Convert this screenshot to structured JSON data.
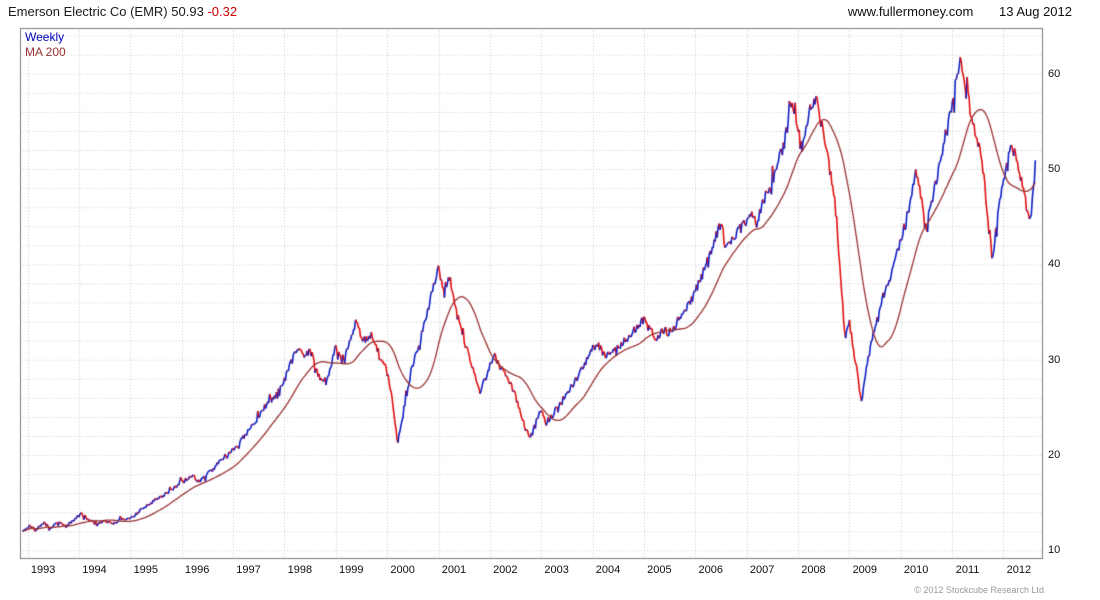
{
  "header": {
    "instrument": "Emerson Electric Co (EMR)",
    "last_price": "50.93",
    "change": "-0.32",
    "website": "www.fullermoney.com",
    "date": "13 Aug 2012"
  },
  "footer": {
    "copyright": "© 2012 Stockcube Research Ltd"
  },
  "chart_data": {
    "type": "line",
    "title": "Emerson Electric Co (EMR) 50.93 -0.32",
    "xlabel": "",
    "ylabel": "",
    "xlim": [
      1992.85,
      2012.75
    ],
    "ylim": [
      9.2,
      64.8
    ],
    "yticks": [
      60,
      50,
      40,
      30,
      20,
      10
    ],
    "ygrid_step": 2,
    "year_labels": [
      "1993",
      "1994",
      "1995",
      "1996",
      "1997",
      "1998",
      "1999",
      "2000",
      "2001",
      "2002",
      "2003",
      "2004",
      "2005",
      "2006",
      "2007",
      "2008",
      "2009",
      "2010",
      "2011",
      "2012"
    ],
    "legend": [
      {
        "label": "Weekly",
        "color": "#0000bb"
      },
      {
        "label": "MA 200",
        "color": "#993333"
      }
    ],
    "colors": {
      "up": "#0f1fc4",
      "down": "#e01010",
      "ma": "#993333",
      "grid": "#cccccc",
      "border": "#7a7a7a",
      "axis_text": "#111111"
    },
    "series": [
      {
        "name": "EMR weekly close keypoints [year, price]",
        "points": [
          [
            1992.9,
            11.9
          ],
          [
            1993.05,
            12.6
          ],
          [
            1993.15,
            12.1
          ],
          [
            1993.3,
            12.9
          ],
          [
            1993.45,
            12.4
          ],
          [
            1993.6,
            12.9
          ],
          [
            1993.75,
            12.5
          ],
          [
            1993.9,
            13.2
          ],
          [
            1994.05,
            13.9
          ],
          [
            1994.2,
            13.1
          ],
          [
            1994.35,
            12.7
          ],
          [
            1994.5,
            13.1
          ],
          [
            1994.65,
            12.7
          ],
          [
            1994.8,
            13.2
          ],
          [
            1995.0,
            13.4
          ],
          [
            1995.2,
            14.2
          ],
          [
            1995.4,
            15.0
          ],
          [
            1995.6,
            15.6
          ],
          [
            1995.8,
            16.4
          ],
          [
            1996.0,
            17.2
          ],
          [
            1996.2,
            17.8
          ],
          [
            1996.35,
            17.2
          ],
          [
            1996.5,
            18.0
          ],
          [
            1996.7,
            19.0
          ],
          [
            1996.9,
            20.2
          ],
          [
            1997.1,
            21.0
          ],
          [
            1997.25,
            22.3
          ],
          [
            1997.4,
            23.2
          ],
          [
            1997.55,
            24.6
          ],
          [
            1997.7,
            25.6
          ],
          [
            1997.85,
            26.4
          ],
          [
            1998.0,
            27.8
          ],
          [
            1998.1,
            29.3
          ],
          [
            1998.25,
            31.2
          ],
          [
            1998.4,
            30.2
          ],
          [
            1998.5,
            31.0
          ],
          [
            1998.6,
            29.4
          ],
          [
            1998.7,
            28.0
          ],
          [
            1998.8,
            27.2
          ],
          [
            1998.9,
            29.5
          ],
          [
            1999.0,
            31.2
          ],
          [
            1999.15,
            30.2
          ],
          [
            1999.3,
            32.6
          ],
          [
            1999.4,
            34.0
          ],
          [
            1999.5,
            32.4
          ],
          [
            1999.6,
            31.8
          ],
          [
            1999.7,
            32.6
          ],
          [
            1999.8,
            31.0
          ],
          [
            1999.9,
            29.6
          ],
          [
            2000.0,
            28.6
          ],
          [
            2000.1,
            26.0
          ],
          [
            2000.2,
            21.2
          ],
          [
            2000.3,
            24.0
          ],
          [
            2000.4,
            27.2
          ],
          [
            2000.5,
            29.6
          ],
          [
            2000.6,
            31.4
          ],
          [
            2000.7,
            33.2
          ],
          [
            2000.8,
            35.2
          ],
          [
            2000.9,
            37.8
          ],
          [
            2001.0,
            39.6
          ],
          [
            2001.1,
            37.0
          ],
          [
            2001.2,
            39.0
          ],
          [
            2001.3,
            36.4
          ],
          [
            2001.4,
            34.0
          ],
          [
            2001.5,
            32.0
          ],
          [
            2001.6,
            30.4
          ],
          [
            2001.7,
            28.6
          ],
          [
            2001.8,
            26.4
          ],
          [
            2001.9,
            27.8
          ],
          [
            2002.0,
            29.4
          ],
          [
            2002.1,
            30.6
          ],
          [
            2002.2,
            29.2
          ],
          [
            2002.35,
            28.0
          ],
          [
            2002.5,
            26.2
          ],
          [
            2002.6,
            24.4
          ],
          [
            2002.7,
            22.6
          ],
          [
            2002.8,
            21.8
          ],
          [
            2002.9,
            23.6
          ],
          [
            2003.0,
            24.8
          ],
          [
            2003.1,
            23.2
          ],
          [
            2003.2,
            24.0
          ],
          [
            2003.35,
            25.4
          ],
          [
            2003.5,
            26.4
          ],
          [
            2003.65,
            27.6
          ],
          [
            2003.8,
            29.0
          ],
          [
            2003.95,
            30.8
          ],
          [
            2004.1,
            31.6
          ],
          [
            2004.25,
            30.2
          ],
          [
            2004.4,
            30.8
          ],
          [
            2004.55,
            31.6
          ],
          [
            2004.7,
            32.4
          ],
          [
            2004.85,
            33.4
          ],
          [
            2005.0,
            34.2
          ],
          [
            2005.1,
            33.2
          ],
          [
            2005.25,
            32.2
          ],
          [
            2005.4,
            33.4
          ],
          [
            2005.5,
            32.6
          ],
          [
            2005.65,
            34.0
          ],
          [
            2005.8,
            35.4
          ],
          [
            2005.95,
            36.6
          ],
          [
            2006.1,
            38.4
          ],
          [
            2006.25,
            40.6
          ],
          [
            2006.4,
            43.0
          ],
          [
            2006.5,
            44.2
          ],
          [
            2006.6,
            41.6
          ],
          [
            2006.7,
            42.4
          ],
          [
            2006.85,
            43.6
          ],
          [
            2007.0,
            44.4
          ],
          [
            2007.1,
            45.4
          ],
          [
            2007.2,
            44.2
          ],
          [
            2007.3,
            46.4
          ],
          [
            2007.45,
            48.0
          ],
          [
            2007.6,
            50.0
          ],
          [
            2007.7,
            52.0
          ],
          [
            2007.8,
            54.6
          ],
          [
            2007.88,
            57.6
          ],
          [
            2007.95,
            55.0
          ],
          [
            2008.05,
            52.4
          ],
          [
            2008.15,
            54.2
          ],
          [
            2008.25,
            56.4
          ],
          [
            2008.35,
            57.8
          ],
          [
            2008.45,
            55.0
          ],
          [
            2008.55,
            52.0
          ],
          [
            2008.65,
            49.0
          ],
          [
            2008.75,
            45.0
          ],
          [
            2008.85,
            37.0
          ],
          [
            2008.92,
            32.0
          ],
          [
            2009.0,
            34.0
          ],
          [
            2009.08,
            31.0
          ],
          [
            2009.16,
            28.0
          ],
          [
            2009.24,
            25.6
          ],
          [
            2009.32,
            28.6
          ],
          [
            2009.4,
            31.0
          ],
          [
            2009.5,
            33.4
          ],
          [
            2009.6,
            35.6
          ],
          [
            2009.7,
            37.4
          ],
          [
            2009.8,
            39.0
          ],
          [
            2009.9,
            40.6
          ],
          [
            2010.0,
            42.4
          ],
          [
            2010.1,
            44.6
          ],
          [
            2010.2,
            47.0
          ],
          [
            2010.3,
            50.0
          ],
          [
            2010.4,
            47.0
          ],
          [
            2010.5,
            44.0
          ],
          [
            2010.6,
            46.4
          ],
          [
            2010.7,
            49.0
          ],
          [
            2010.8,
            51.6
          ],
          [
            2010.9,
            54.0
          ],
          [
            2011.0,
            56.6
          ],
          [
            2011.08,
            59.0
          ],
          [
            2011.15,
            62.0
          ],
          [
            2011.25,
            59.0
          ],
          [
            2011.35,
            56.4
          ],
          [
            2011.45,
            54.0
          ],
          [
            2011.55,
            52.0
          ],
          [
            2011.62,
            49.0
          ],
          [
            2011.7,
            45.0
          ],
          [
            2011.78,
            40.6
          ],
          [
            2011.85,
            43.6
          ],
          [
            2011.92,
            46.0
          ],
          [
            2012.0,
            48.6
          ],
          [
            2012.08,
            51.0
          ],
          [
            2012.16,
            52.6
          ],
          [
            2012.25,
            51.0
          ],
          [
            2012.35,
            49.0
          ],
          [
            2012.45,
            46.0
          ],
          [
            2012.52,
            44.8
          ],
          [
            2012.58,
            47.5
          ],
          [
            2012.62,
            50.93
          ]
        ]
      },
      {
        "name": "MA 200",
        "derived": "trailing mean of 40 weekly closes"
      }
    ],
    "last_point": {
      "year": 2012.62,
      "price": 50.93
    }
  }
}
